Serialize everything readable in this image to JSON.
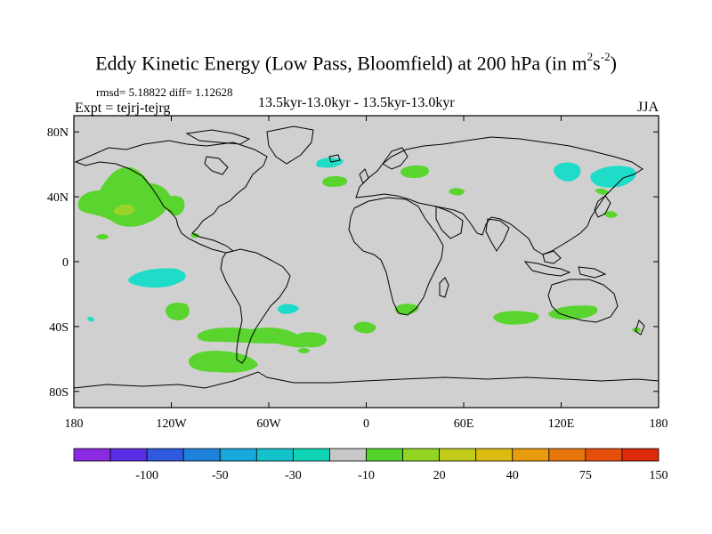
{
  "title": {
    "main": "Eddy Kinetic Energy (Low Pass, Bloomfield) at 200 hPa (in m",
    "sup1": "2",
    "mid": "s",
    "sup2": "-2",
    "close": ")"
  },
  "stats": {
    "text": "rmsd= 5.18822  diff= 1.12628"
  },
  "experiment": {
    "text": "Expt = tejrj-tejrg"
  },
  "period": {
    "text": "13.5kyr-13.0kyr - 13.5kyr-13.0kyr"
  },
  "season": {
    "text": "JJA"
  },
  "axes": {
    "x_ticks": [
      "180",
      "120W",
      "60W",
      "0",
      "60E",
      "120E",
      "180"
    ],
    "y_ticks": [
      "80N",
      "40N",
      "0",
      "40S",
      "80S"
    ],
    "lon_range": [
      -180,
      180
    ],
    "lat_range": [
      -90,
      90
    ]
  },
  "colorbar": {
    "labels": [
      "-100",
      "-50",
      "-30",
      "-10",
      "20",
      "40",
      "75",
      "150"
    ],
    "colors": [
      "#8a2be2",
      "#5a2ee6",
      "#2f5ae0",
      "#1e82dc",
      "#18a8dc",
      "#14c2cc",
      "#10d4b6",
      "#c8c8c8",
      "#52d42a",
      "#94d422",
      "#c2cc1a",
      "#dcbc12",
      "#e89c0e",
      "#e8760c",
      "#e4500c",
      "#dc2a0a"
    ]
  },
  "colors": {
    "land_bg": "#d0d0d0",
    "positive_small": "#5ad42e",
    "positive_mid": "#9ad42a",
    "negative_small": "#1edcc8"
  }
}
